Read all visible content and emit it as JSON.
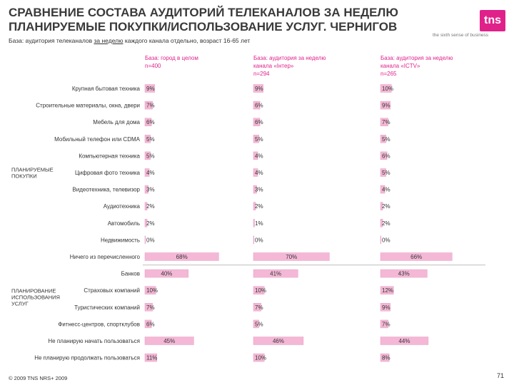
{
  "header": {
    "title_line1": "СРАВНЕНИЕ СОСТАВА АУДИТОРИЙ ТЕЛЕКАНАЛОВ ЗА НЕДЕЛЮ",
    "title_line2": "ПЛАНИРУЕМЫЕ ПОКУПКИ/ИСПОЛЬЗОВАНИЕ УСЛУГ. ЧЕРНИГОВ",
    "logo_text": "tns",
    "tagline": "the sixth sense of business",
    "basis_before": "База: аудитория телеканалов ",
    "basis_underlined": "за неделю",
    "basis_after": " каждого канала отдельно, возраст 16-65 лет"
  },
  "columns": [
    {
      "line1": "База: город в целом",
      "line2": "n=400",
      "line3": ""
    },
    {
      "line1": "База: аудитория за неделю",
      "line2": "канала «Інтер»",
      "line3": "n=294"
    },
    {
      "line1": "База: аудитория за неделю",
      "line2": "канала «ICTV»",
      "line3": "n=265"
    }
  ],
  "colors": {
    "bar": "#f4b8d6",
    "bar_edge": "#e8a0c4",
    "accent": "#e0218a",
    "separator": "#999999"
  },
  "chart_data": {
    "type": "bar",
    "orientation": "horizontal",
    "xlim": [
      0,
      100
    ],
    "groups": [
      {
        "label_line1": "ПЛАНИРУЕМЫЕ",
        "label_line2": "ПОКУПКИ",
        "label_line3": "",
        "start": 0,
        "end": 10
      },
      {
        "label_line1": "ПЛАНИРОВАНИЕ",
        "label_line2": "ИСПОЛЬЗОВАНИЯ",
        "label_line3": "УСЛУГ",
        "start": 11,
        "end": 16
      }
    ],
    "categories": [
      "Крупная бытовая техника",
      "Строительные материалы, окна, двери",
      "Мебель для дома",
      "Мобильный телефон или CDMA",
      "Компьютерная техника",
      "Цифровая фото техника",
      "Видеотехника, телевизор",
      "Аудиотехника",
      "Автомобиль",
      "Недвижимость",
      "Ничего из перечисленного",
      "Банков",
      "Страховых компаний",
      "Туристических компаний",
      "Фитнесс-центров, спортклубов",
      "Не планирую начать пользоваться",
      "Не планирую продолжать пользоваться"
    ],
    "series": [
      {
        "name": "Город в целом",
        "values": [
          9,
          7,
          6,
          5,
          5,
          4,
          3,
          2,
          2,
          0,
          68,
          40,
          10,
          7,
          6,
          45,
          11
        ]
      },
      {
        "name": "Інтер",
        "values": [
          9,
          6,
          6,
          5,
          4,
          4,
          3,
          2,
          1,
          0,
          70,
          41,
          10,
          7,
          5,
          46,
          10
        ]
      },
      {
        "name": "ICTV",
        "values": [
          10,
          9,
          7,
          5,
          6,
          5,
          4,
          2,
          2,
          0,
          66,
          43,
          12,
          9,
          7,
          44,
          8
        ]
      }
    ],
    "value_suffix": "%"
  },
  "footer": {
    "copyright": "© 2009 TNS   NRS+ 2009",
    "page": "71"
  }
}
